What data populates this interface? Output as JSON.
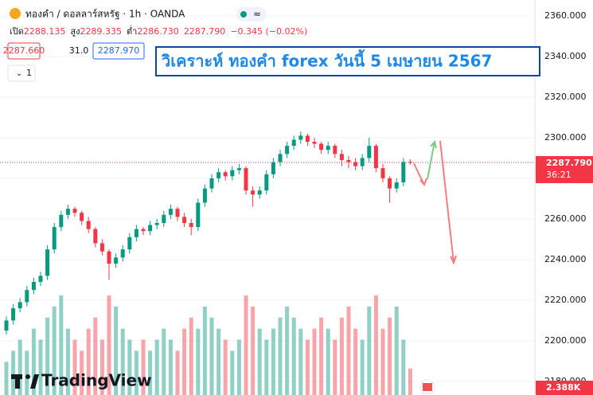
{
  "chart_data": {
    "type": "candlestick",
    "title": "วิเคราะห์ ทองคำ forex วันนี้ 5 เมษายน 2567",
    "symbol": "ทองคำ / ดอลลาร์สหรัฐ · 1h · OANDA",
    "ohlc_labels": [
      "เปิด",
      "สูง",
      "ต่ำ"
    ],
    "ohlc_values": [
      "2288.135",
      "2289.335",
      "2286.730",
      "2287.790",
      "−0.345 (−0.02%)"
    ],
    "bid": "2287.660",
    "spread": "31.0",
    "ask": "2287.970",
    "interval_count": "1",
    "price_label": "2287.790",
    "countdown": "36:21",
    "volume_label": "2.388K",
    "watermark": "TradingView",
    "up_color": "#089981",
    "down_color": "#f23645",
    "open": [
      2205,
      2210,
      2216,
      2219,
      2225,
      2229,
      2232,
      2245,
      2256,
      2262,
      2265,
      2263,
      2259,
      2255,
      2248,
      2244,
      2238,
      2241,
      2245,
      2251,
      2255,
      2254,
      2257,
      2258,
      2262,
      2265,
      2261,
      2258,
      2256,
      2268,
      2275,
      2280,
      2283,
      2281,
      2284,
      2285,
      2274,
      2272,
      2274,
      2282,
      2288,
      2292,
      2296,
      2299,
      2301,
      2298,
      2297,
      2294,
      2296,
      2292,
      2289,
      2288,
      2286,
      2290,
      2296,
      2285,
      2280,
      2275,
      2278,
      2288.135
    ],
    "high": [
      2212,
      2218,
      2221,
      2227,
      2231,
      2234,
      2247,
      2258,
      2264,
      2267,
      2266,
      2264,
      2261,
      2256,
      2250,
      2245,
      2243,
      2247,
      2253,
      2257,
      2256,
      2259,
      2260,
      2264,
      2267,
      2266,
      2263,
      2260,
      2270,
      2277,
      2282,
      2285,
      2284,
      2286,
      2287,
      2286,
      2276,
      2276,
      2284,
      2290,
      2294,
      2298,
      2301,
      2303,
      2302,
      2300,
      2298,
      2298,
      2297,
      2294,
      2291,
      2290,
      2292,
      2300,
      2297,
      2287,
      2281,
      2280,
      2290,
      2289.335
    ],
    "low": [
      2203,
      2208,
      2214,
      2217,
      2223,
      2227,
      2230,
      2243,
      2254,
      2260,
      2261,
      2257,
      2253,
      2246,
      2242,
      2230,
      2236,
      2239,
      2243,
      2249,
      2252,
      2252,
      2255,
      2256,
      2260,
      2259,
      2256,
      2252,
      2254,
      2266,
      2273,
      2278,
      2279,
      2279,
      2282,
      2272,
      2266,
      2270,
      2272,
      2280,
      2286,
      2290,
      2294,
      2297,
      2296,
      2295,
      2292,
      2292,
      2290,
      2286,
      2285,
      2284,
      2284,
      2288,
      2283,
      2278,
      2268,
      2273,
      2276,
      2286.73
    ],
    "close": [
      2210,
      2216,
      2219,
      2225,
      2229,
      2232,
      2245,
      2256,
      2262,
      2265,
      2263,
      2259,
      2255,
      2248,
      2244,
      2238,
      2241,
      2245,
      2251,
      2255,
      2254,
      2257,
      2258,
      2262,
      2265,
      2261,
      2258,
      2256,
      2268,
      2275,
      2280,
      2283,
      2281,
      2284,
      2285,
      2274,
      2272,
      2274,
      2282,
      2288,
      2292,
      2296,
      2299,
      2301,
      2298,
      2297,
      2294,
      2296,
      2292,
      2289,
      2288,
      2286,
      2290,
      2296,
      2285,
      2280,
      2275,
      2278,
      2288.1,
      2287.79
    ],
    "volume": [
      3,
      4,
      5,
      4,
      6,
      5,
      7,
      8,
      9,
      6,
      5,
      4,
      6,
      7,
      5,
      9,
      8,
      6,
      5,
      4,
      5,
      4,
      5,
      6,
      5,
      4,
      6,
      7,
      6,
      8,
      7,
      6,
      5,
      4,
      5,
      9,
      8,
      6,
      5,
      6,
      7,
      8,
      7,
      6,
      5,
      6,
      7,
      6,
      5,
      7,
      8,
      6,
      5,
      8,
      9,
      6,
      7,
      8,
      5,
      2.388
    ],
    "ylim": [
      2173.3,
      2367.8
    ],
    "yticks": [
      {
        "value": 2360,
        "label": "2360.000"
      },
      {
        "value": 2340,
        "label": "2340.000"
      },
      {
        "value": 2320,
        "label": "2320.000"
      },
      {
        "value": 2300,
        "label": "2300.000"
      },
      {
        "value": 2280,
        "label": "2280.000"
      },
      {
        "value": 2260,
        "label": "2260.000"
      },
      {
        "value": 2240,
        "label": "2240.000"
      },
      {
        "value": 2220,
        "label": "2220.000"
      },
      {
        "value": 2200,
        "label": "2200.000"
      },
      {
        "value": 2180,
        "label": "2180.000"
      }
    ],
    "grid": true
  }
}
